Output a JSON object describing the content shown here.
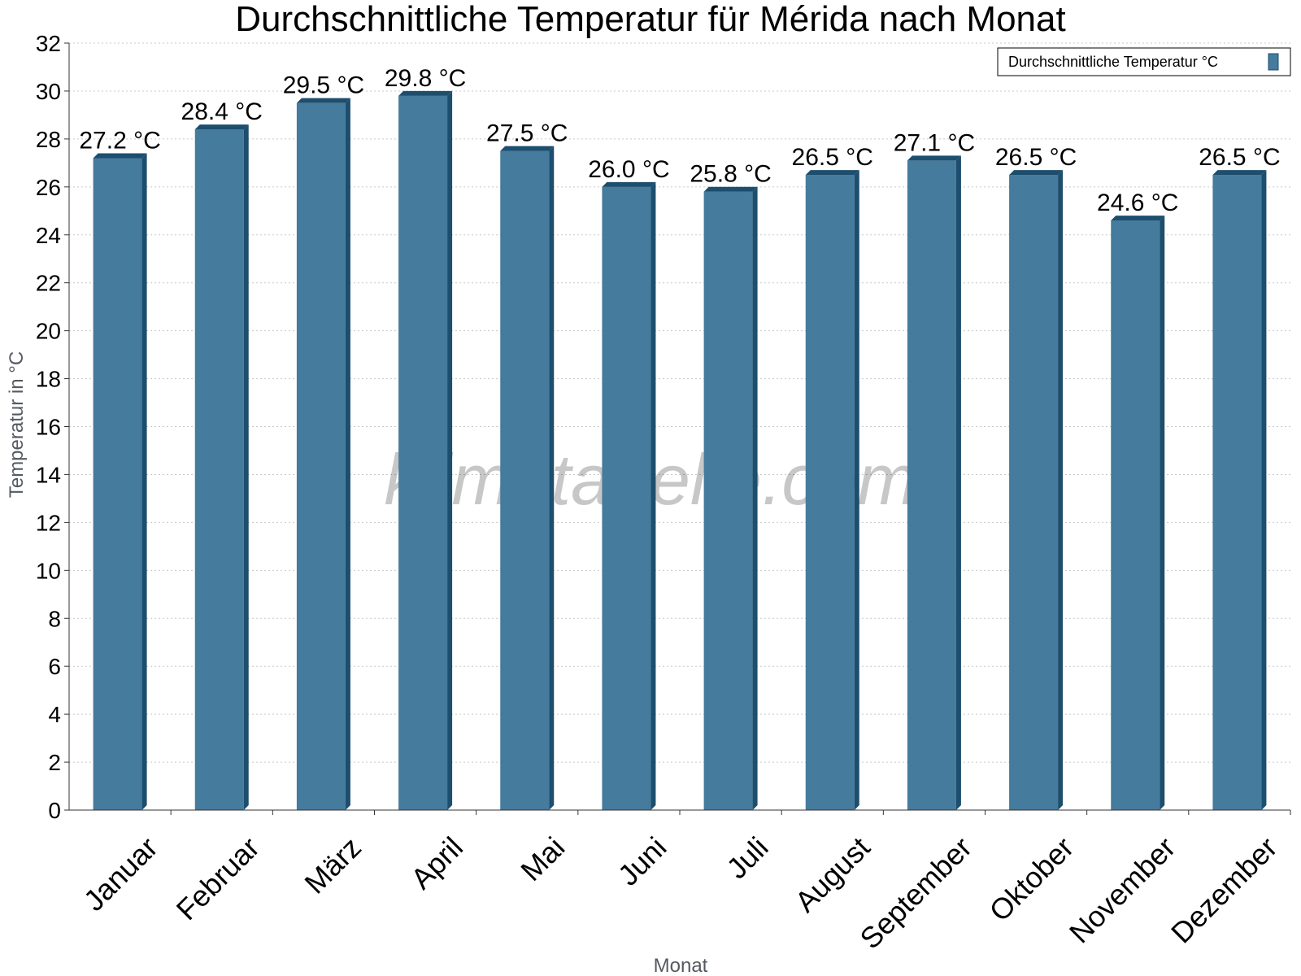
{
  "chart_data": {
    "type": "bar",
    "title": "Durchschnittliche Temperatur für Mérida nach Monat",
    "xlabel": "Monat",
    "ylabel": "Temperatur in °C",
    "categories": [
      "Januar",
      "Februar",
      "März",
      "April",
      "Mai",
      "Juni",
      "Juli",
      "August",
      "September",
      "Oktober",
      "November",
      "Dezember"
    ],
    "series": [
      {
        "name": "Durchschnittliche Temperatur °C",
        "values": [
          27.2,
          28.4,
          29.5,
          29.8,
          27.5,
          26.0,
          25.8,
          26.5,
          27.1,
          26.5,
          24.6,
          26.5
        ],
        "labels": [
          "27.2 °C",
          "28.4 °C",
          "29.5 °C",
          "29.8 °C",
          "27.5 °C",
          "26.0 °C",
          "25.8 °C",
          "26.5 °C",
          "27.1 °C",
          "26.5 °C",
          "24.6 °C",
          "26.5 °C"
        ]
      }
    ],
    "ylim": [
      0,
      32
    ],
    "yticks": [
      0,
      2,
      4,
      6,
      8,
      10,
      12,
      14,
      16,
      18,
      20,
      22,
      24,
      26,
      28,
      30,
      32
    ],
    "grid": true,
    "legend_position": "top-right",
    "watermark": "klimatabelle.com",
    "colors": {
      "bar_face": "#457b9d",
      "bar_side": "#1d4e6e",
      "bar_top": "#1d4e6e",
      "grid": "#c8c8c8",
      "axis": "#333333"
    }
  }
}
